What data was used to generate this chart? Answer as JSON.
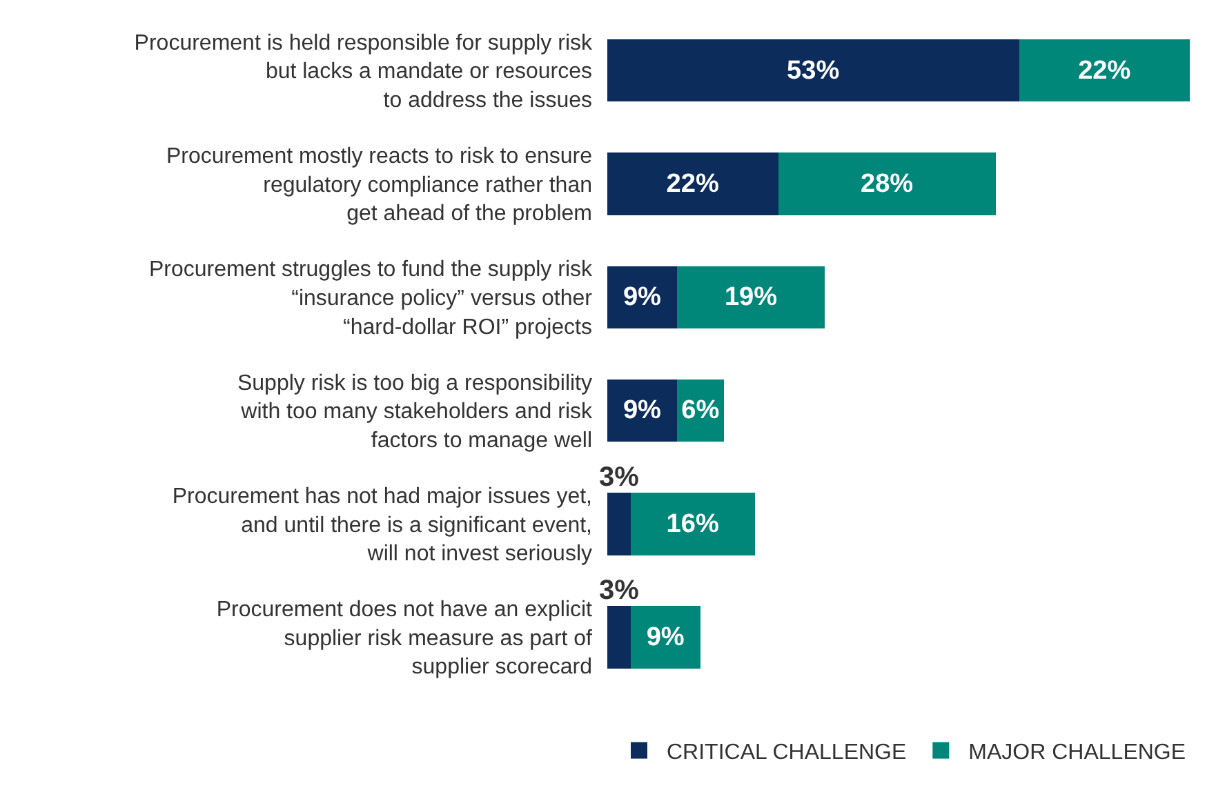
{
  "chart_data": {
    "type": "bar",
    "orientation": "horizontal",
    "stacked": true,
    "data_labels": true,
    "legend": "bottom right",
    "categories": [
      "Procurement is held responsible for supply risk\nbut lacks a mandate or resources\nto address the issues",
      "Procurement mostly reacts to risk to ensure\nregulatory compliance rather than\nget ahead of the problem",
      "Procurement struggles to fund the supply risk\n“insurance policy” versus other\n“hard-dollar ROI” projects",
      "Supply risk is too big a responsibility\nwith too many stakeholders and risk\nfactors to manage well",
      "Procurement has not had major issues yet,\nand until there is a significant event,\nwill not invest seriously",
      "Procurement does not have an explicit\nsupplier risk measure as part of\nsupplier scorecard"
    ],
    "series": [
      {
        "name": "CRITICAL CHALLENGE",
        "color": "#0c2c5c",
        "values": [
          53,
          22,
          9,
          9,
          3,
          3
        ],
        "value_labels": [
          "53%",
          "22%",
          "9%",
          "9%",
          "3%",
          "3%"
        ]
      },
      {
        "name": "MAJOR CHALLENGE",
        "color": "#00877a",
        "values": [
          22,
          28,
          19,
          6,
          16,
          9
        ],
        "value_labels": [
          "22%",
          "28%",
          "19%",
          "6%",
          "16%",
          "9%"
        ]
      }
    ]
  }
}
